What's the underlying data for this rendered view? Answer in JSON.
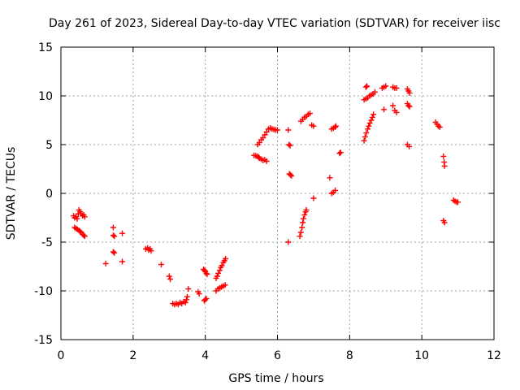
{
  "chart_data": {
    "type": "scatter",
    "title": "Day 261 of 2023, Sidereal Day-to-day VTEC variation (SDTVAR) for receiver iisc",
    "xlabel": "GPS time / hours",
    "ylabel": "SDTVAR / TECUs",
    "xlim": [
      0,
      12
    ],
    "ylim": [
      -15,
      15
    ],
    "xticks": [
      0,
      2,
      4,
      6,
      8,
      10,
      12
    ],
    "yticks": [
      -15,
      -10,
      -5,
      0,
      5,
      10,
      15
    ],
    "grid": true,
    "marker": "+",
    "color": "#ff0000",
    "series": [
      {
        "name": "SDTVAR",
        "points": [
          [
            0.35,
            -2.3
          ],
          [
            0.38,
            -2.5
          ],
          [
            0.42,
            -2.4
          ],
          [
            0.45,
            -2.6
          ],
          [
            0.48,
            -2.1
          ],
          [
            0.5,
            -1.7
          ],
          [
            0.53,
            -1.9
          ],
          [
            0.56,
            -2.1
          ],
          [
            0.6,
            -2.3
          ],
          [
            0.63,
            -2.2
          ],
          [
            0.66,
            -2.4
          ],
          [
            0.38,
            -3.5
          ],
          [
            0.42,
            -3.6
          ],
          [
            0.46,
            -3.7
          ],
          [
            0.5,
            -3.8
          ],
          [
            0.53,
            -3.9
          ],
          [
            0.56,
            -4.0
          ],
          [
            0.6,
            -4.2
          ],
          [
            0.63,
            -4.3
          ],
          [
            0.66,
            -4.4
          ],
          [
            1.24,
            -7.2
          ],
          [
            1.45,
            -3.5
          ],
          [
            1.45,
            -4.3
          ],
          [
            1.48,
            -4.4
          ],
          [
            1.45,
            -6.0
          ],
          [
            1.48,
            -6.1
          ],
          [
            1.7,
            -4.1
          ],
          [
            1.7,
            -7.0
          ],
          [
            2.35,
            -5.7
          ],
          [
            2.4,
            -5.6
          ],
          [
            2.43,
            -5.8
          ],
          [
            2.47,
            -5.7
          ],
          [
            2.5,
            -5.9
          ],
          [
            2.78,
            -7.3
          ],
          [
            3.0,
            -8.5
          ],
          [
            3.03,
            -8.8
          ],
          [
            3.1,
            -11.3
          ],
          [
            3.15,
            -11.4
          ],
          [
            3.2,
            -11.3
          ],
          [
            3.25,
            -11.4
          ],
          [
            3.3,
            -11.2
          ],
          [
            3.35,
            -11.3
          ],
          [
            3.4,
            -11.1
          ],
          [
            3.45,
            -11.2
          ],
          [
            3.48,
            -10.9
          ],
          [
            3.5,
            -10.6
          ],
          [
            3.53,
            -9.8
          ],
          [
            3.8,
            -10.1
          ],
          [
            3.83,
            -10.3
          ],
          [
            3.95,
            -7.8
          ],
          [
            3.98,
            -7.9
          ],
          [
            4.0,
            -8.0
          ],
          [
            4.03,
            -8.2
          ],
          [
            4.05,
            -8.3
          ],
          [
            3.97,
            -11.0
          ],
          [
            4.0,
            -10.9
          ],
          [
            4.03,
            -10.8
          ],
          [
            4.3,
            -8.7
          ],
          [
            4.33,
            -8.5
          ],
          [
            4.36,
            -8.2
          ],
          [
            4.4,
            -7.9
          ],
          [
            4.43,
            -7.6
          ],
          [
            4.46,
            -7.4
          ],
          [
            4.5,
            -7.1
          ],
          [
            4.53,
            -6.9
          ],
          [
            4.56,
            -6.7
          ],
          [
            4.3,
            -10.0
          ],
          [
            4.35,
            -9.8
          ],
          [
            4.4,
            -9.7
          ],
          [
            4.45,
            -9.6
          ],
          [
            4.5,
            -9.5
          ],
          [
            4.55,
            -9.4
          ],
          [
            5.35,
            3.9
          ],
          [
            5.4,
            3.85
          ],
          [
            5.45,
            3.8
          ],
          [
            5.48,
            3.7
          ],
          [
            5.5,
            3.6
          ],
          [
            5.55,
            3.5
          ],
          [
            5.6,
            3.4
          ],
          [
            5.65,
            3.45
          ],
          [
            5.7,
            3.3
          ],
          [
            5.45,
            5.0
          ],
          [
            5.5,
            5.2
          ],
          [
            5.55,
            5.5
          ],
          [
            5.6,
            5.7
          ],
          [
            5.65,
            6.0
          ],
          [
            5.7,
            6.3
          ],
          [
            5.75,
            6.6
          ],
          [
            5.8,
            6.7
          ],
          [
            5.85,
            6.6
          ],
          [
            5.9,
            6.55
          ],
          [
            5.95,
            6.5
          ],
          [
            6.0,
            6.5
          ],
          [
            6.3,
            6.5
          ],
          [
            6.32,
            5.0
          ],
          [
            6.35,
            4.9
          ],
          [
            6.33,
            2.0
          ],
          [
            6.36,
            1.9
          ],
          [
            6.39,
            1.8
          ],
          [
            6.3,
            -5.0
          ],
          [
            6.62,
            -4.4
          ],
          [
            6.65,
            -4.0
          ],
          [
            6.68,
            -3.5
          ],
          [
            6.7,
            -3.0
          ],
          [
            6.72,
            -2.6
          ],
          [
            6.75,
            -2.2
          ],
          [
            6.78,
            -1.9
          ],
          [
            6.8,
            -1.7
          ],
          [
            6.65,
            7.4
          ],
          [
            6.7,
            7.6
          ],
          [
            6.75,
            7.8
          ],
          [
            6.8,
            7.9
          ],
          [
            6.85,
            8.1
          ],
          [
            6.9,
            8.2
          ],
          [
            6.95,
            7.0
          ],
          [
            7.0,
            6.9
          ],
          [
            7.0,
            -0.5
          ],
          [
            7.45,
            1.6
          ],
          [
            7.5,
            0.0
          ],
          [
            7.55,
            0.1
          ],
          [
            7.6,
            0.3
          ],
          [
            7.5,
            6.6
          ],
          [
            7.55,
            6.7
          ],
          [
            7.6,
            6.8
          ],
          [
            7.62,
            6.9
          ],
          [
            7.72,
            4.1
          ],
          [
            7.75,
            4.2
          ],
          [
            8.4,
            5.4
          ],
          [
            8.43,
            5.8
          ],
          [
            8.46,
            6.2
          ],
          [
            8.5,
            6.6
          ],
          [
            8.53,
            6.9
          ],
          [
            8.56,
            7.2
          ],
          [
            8.6,
            7.5
          ],
          [
            8.63,
            7.8
          ],
          [
            8.66,
            8.1
          ],
          [
            8.4,
            9.6
          ],
          [
            8.45,
            9.7
          ],
          [
            8.5,
            9.8
          ],
          [
            8.55,
            10.0
          ],
          [
            8.6,
            10.1
          ],
          [
            8.65,
            10.2
          ],
          [
            8.7,
            10.4
          ],
          [
            8.45,
            10.9
          ],
          [
            8.48,
            11.0
          ],
          [
            8.9,
            10.8
          ],
          [
            8.95,
            10.9
          ],
          [
            9.0,
            11.0
          ],
          [
            8.95,
            8.6
          ],
          [
            9.2,
            10.9
          ],
          [
            9.25,
            10.8
          ],
          [
            9.3,
            10.8
          ],
          [
            9.2,
            9.0
          ],
          [
            9.25,
            8.5
          ],
          [
            9.3,
            8.3
          ],
          [
            9.6,
            10.7
          ],
          [
            9.63,
            10.5
          ],
          [
            9.66,
            10.3
          ],
          [
            9.6,
            9.2
          ],
          [
            9.63,
            9.0
          ],
          [
            9.66,
            8.9
          ],
          [
            9.6,
            5.0
          ],
          [
            9.65,
            4.8
          ],
          [
            10.38,
            7.3
          ],
          [
            10.42,
            7.1
          ],
          [
            10.46,
            6.9
          ],
          [
            10.5,
            6.8
          ],
          [
            10.6,
            3.8
          ],
          [
            10.62,
            3.2
          ],
          [
            10.63,
            2.8
          ],
          [
            10.6,
            -2.8
          ],
          [
            10.63,
            -3.0
          ],
          [
            10.88,
            -0.7
          ],
          [
            10.92,
            -0.8
          ],
          [
            10.96,
            -0.9
          ],
          [
            11.0,
            -0.9
          ]
        ]
      }
    ]
  }
}
